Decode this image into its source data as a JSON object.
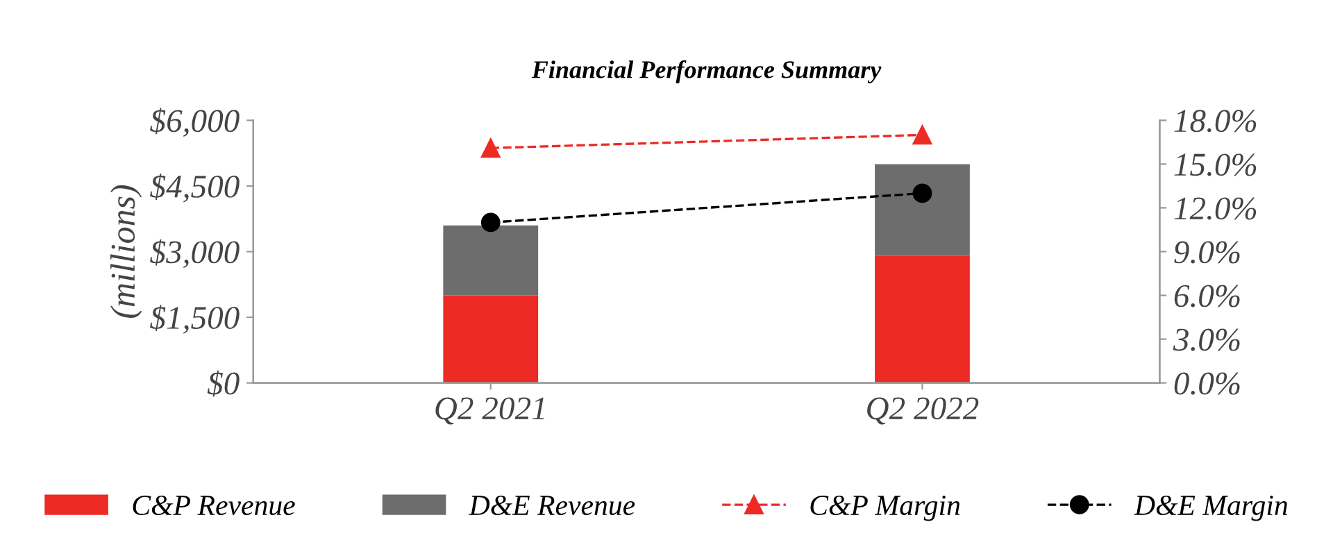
{
  "chart_data": {
    "type": "bar",
    "title": "Financial Performance Summary",
    "ylabel": "(millions)",
    "categories": [
      "Q2 2021",
      "Q2 2022"
    ],
    "stacked": true,
    "series": [
      {
        "name": "C&P Revenue",
        "color": "#ee2a24",
        "values": [
          2000,
          2900
        ]
      },
      {
        "name": "D&E Revenue",
        "color": "#6d6d6d",
        "values": [
          1600,
          2100
        ]
      },
      {
        "name": "C&P Margin",
        "type": "line",
        "axis": "y2",
        "color": "#ee2a24",
        "marker": "triangle",
        "line_style": "dashed",
        "values": [
          16.1,
          17.0
        ]
      },
      {
        "name": "D&E Margin",
        "type": "line",
        "axis": "y2",
        "color": "#000000",
        "marker": "circle",
        "line_style": "dashed",
        "values": [
          11.0,
          13.0
        ]
      }
    ],
    "ylim": [
      0,
      6000
    ],
    "yticks": [
      {
        "value": 0,
        "label": "$0"
      },
      {
        "value": 1500,
        "label": "$1,500"
      },
      {
        "value": 3000,
        "label": "$3,000"
      },
      {
        "value": 4500,
        "label": "$4,500"
      },
      {
        "value": 6000,
        "label": "$6,000"
      }
    ],
    "y2lim": [
      0,
      18
    ],
    "y2ticks": [
      {
        "value": 0,
        "label": "0.0%"
      },
      {
        "value": 3,
        "label": "3.0%"
      },
      {
        "value": 6,
        "label": "6.0%"
      },
      {
        "value": 9,
        "label": "9.0%"
      },
      {
        "value": 12,
        "label": "12.0%"
      },
      {
        "value": 15,
        "label": "15.0%"
      },
      {
        "value": 18,
        "label": "18.0%"
      }
    ],
    "grid": false,
    "legend": "bottom"
  }
}
